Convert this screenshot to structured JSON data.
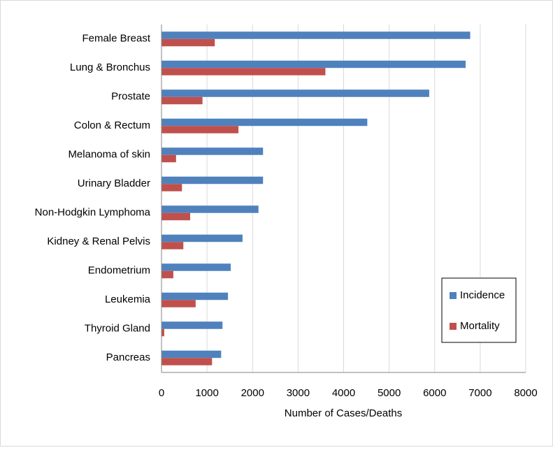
{
  "chart_data": {
    "type": "hbar",
    "categories": [
      "Female Breast",
      "Lung & Bronchus",
      "Prostate",
      "Colon & Rectum",
      "Melanoma of skin",
      "Urinary Bladder",
      "Non-Hodgkin Lymphoma",
      "Kidney & Renal Pelvis",
      "Endometrium",
      "Leukemia",
      "Thyroid Gland",
      "Pancreas"
    ],
    "series": [
      {
        "name": "Incidence",
        "color": "#4f81bd",
        "values": [
          6780,
          6680,
          5880,
          4520,
          2230,
          2230,
          2130,
          1780,
          1520,
          1460,
          1340,
          1310
        ]
      },
      {
        "name": "Mortality",
        "color": "#c0504d",
        "values": [
          1170,
          3600,
          900,
          1690,
          320,
          450,
          630,
          480,
          260,
          750,
          60,
          1110
        ]
      }
    ],
    "x_label": "Number of Cases/Deaths",
    "xlim": [
      0,
      8000
    ],
    "xticks": [
      0,
      1000,
      2000,
      3000,
      4000,
      5000,
      6000,
      7000,
      8000
    ],
    "grid": true,
    "legend_position": "lower right"
  }
}
